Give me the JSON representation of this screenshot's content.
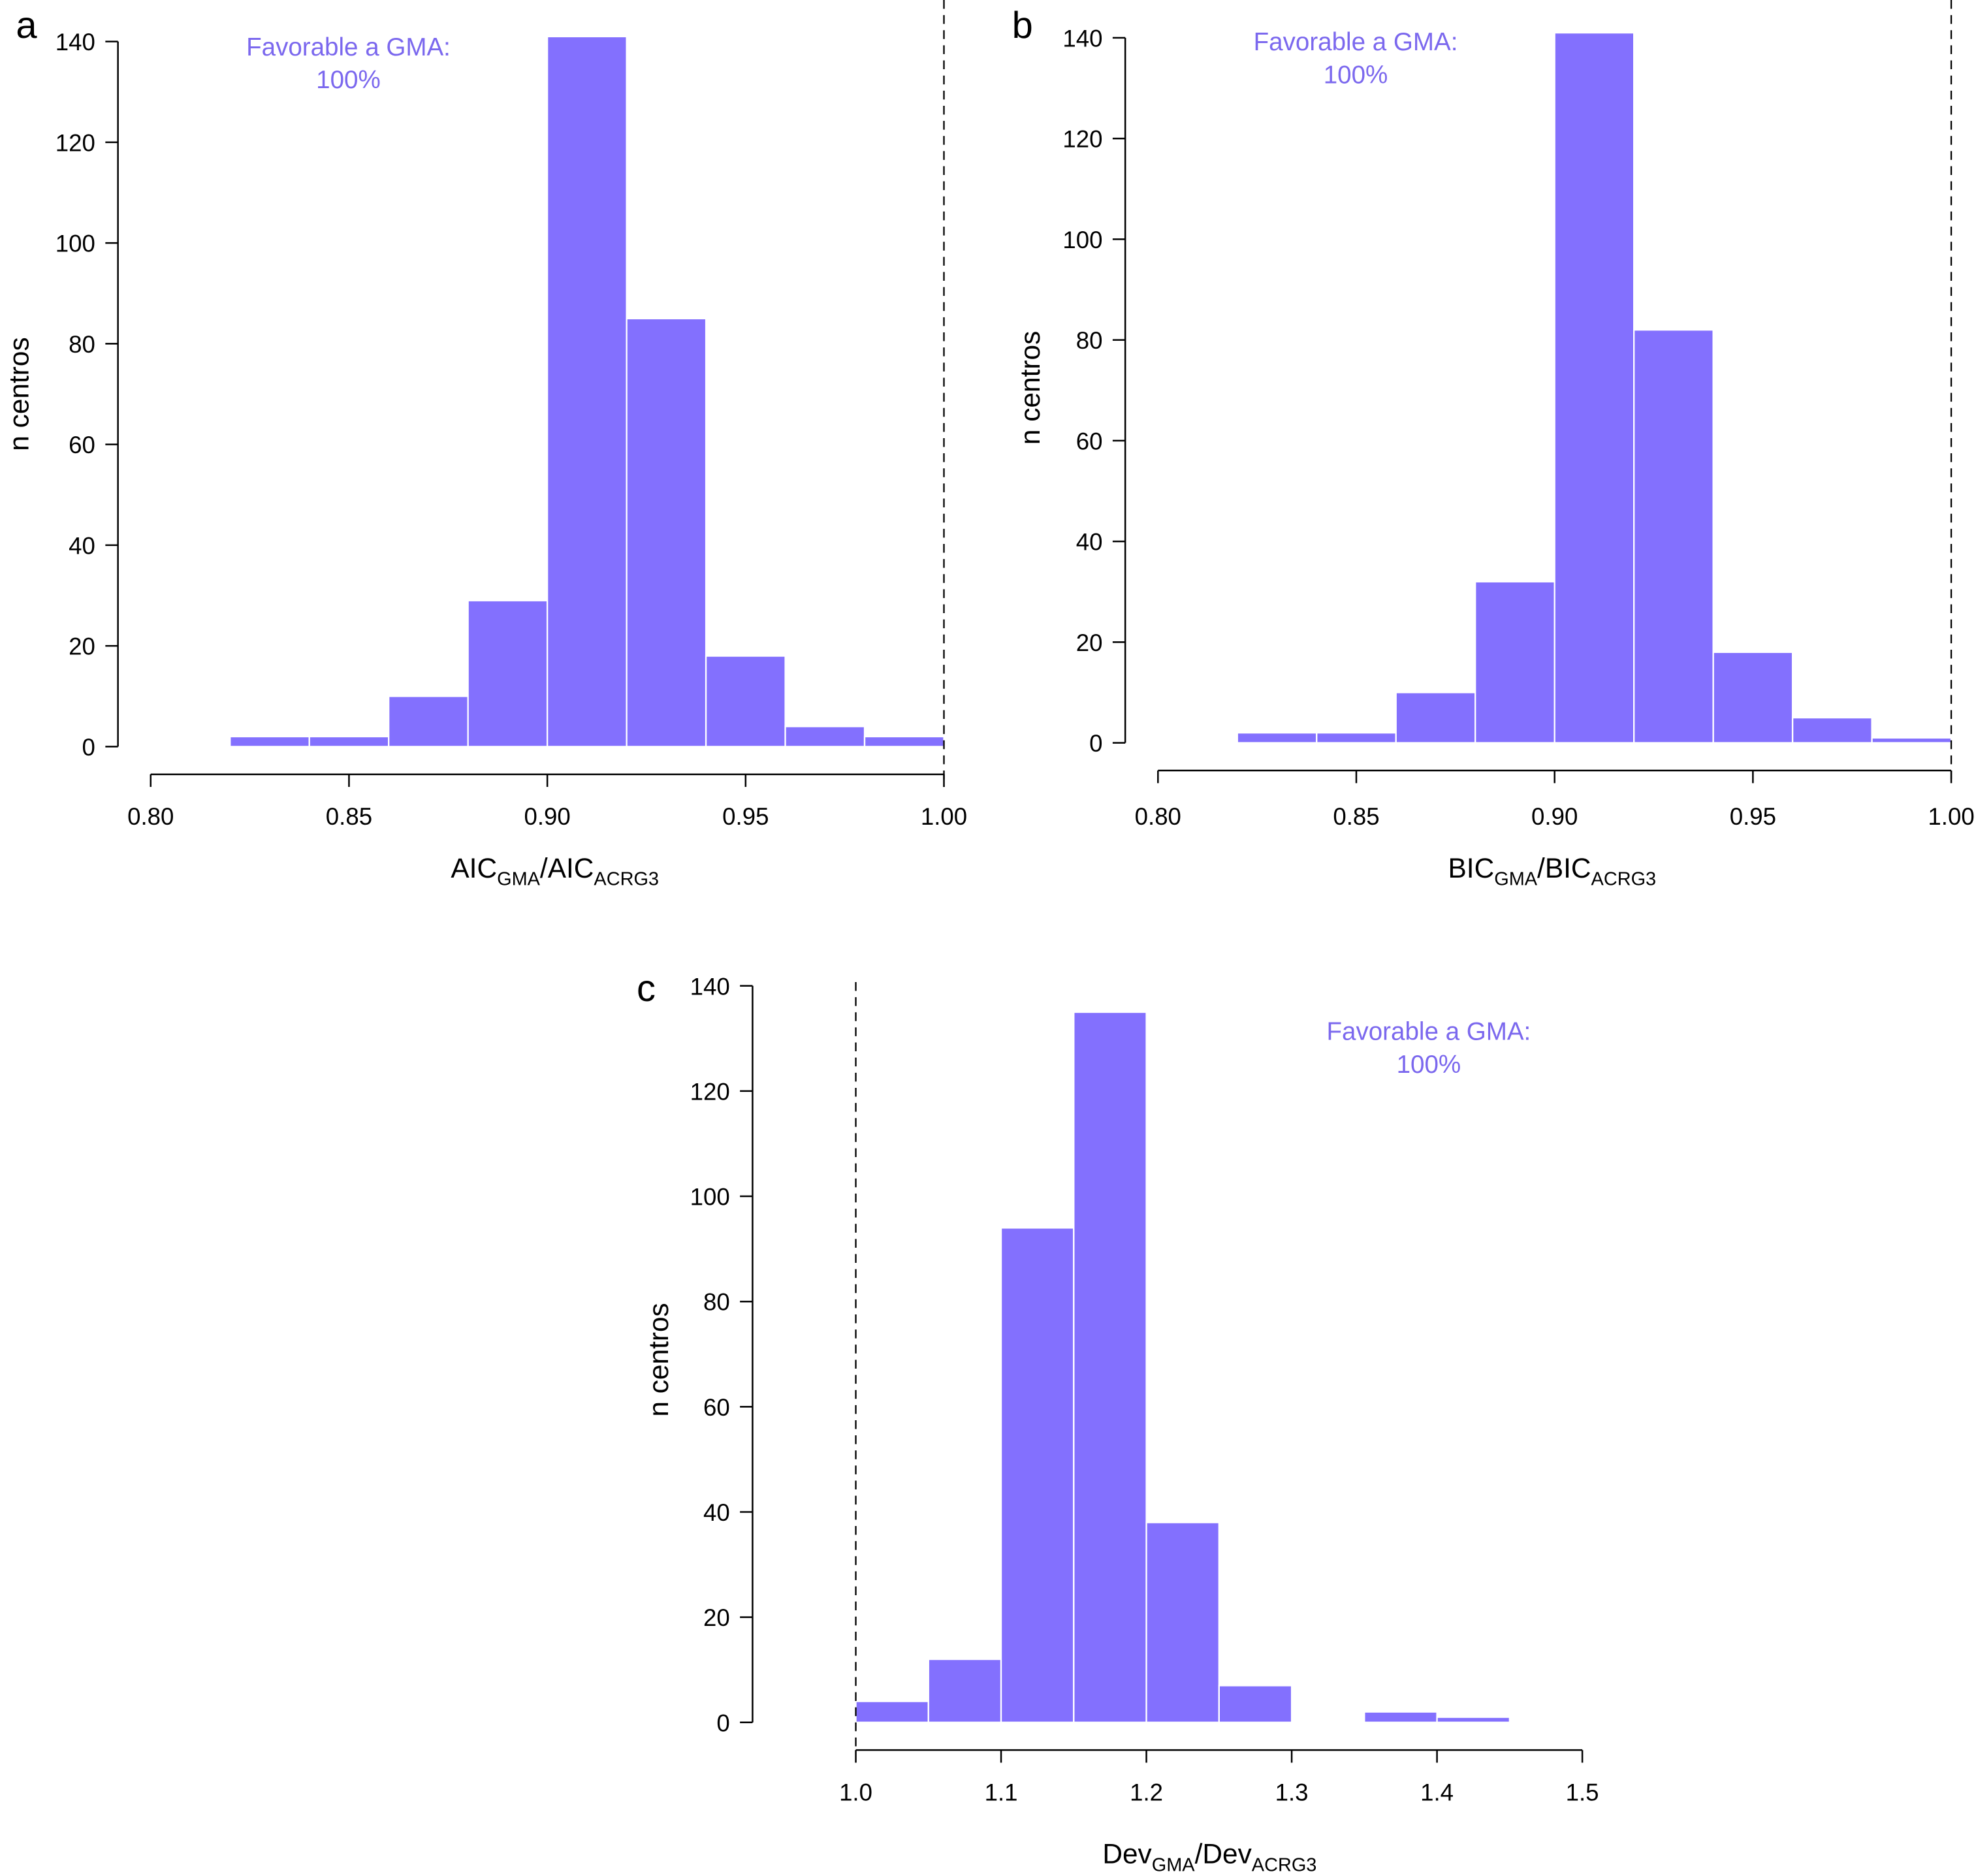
{
  "colors": {
    "bar": "#8370fe",
    "annotation": "#7b68ee",
    "axis": "#000000"
  },
  "chart_data": [
    {
      "panel": "a",
      "type": "bar",
      "bin_edges": [
        0.82,
        0.84,
        0.86,
        0.88,
        0.9,
        0.92,
        0.94,
        0.96,
        0.98,
        1.0
      ],
      "values": [
        2,
        2,
        10,
        29,
        141,
        85,
        18,
        4,
        2
      ],
      "xlim": [
        0.8,
        1.0
      ],
      "ylim": [
        0,
        140
      ],
      "xticks": [
        "0.80",
        "0.85",
        "0.90",
        "0.95",
        "1.00"
      ],
      "yticks": [
        "0",
        "20",
        "40",
        "60",
        "80",
        "100",
        "120",
        "140"
      ],
      "xlabel": {
        "main1": "AIC",
        "sub1": "GMA",
        "main2": "/AIC",
        "sub2": "ACRG3"
      },
      "ylabel": "n centros",
      "reference_line": 1.0,
      "annotation": [
        "Favorable a GMA:",
        "100%"
      ]
    },
    {
      "panel": "b",
      "type": "bar",
      "bin_edges": [
        0.82,
        0.84,
        0.86,
        0.88,
        0.9,
        0.92,
        0.94,
        0.96,
        0.98,
        1.0
      ],
      "values": [
        2,
        2,
        10,
        32,
        141,
        82,
        18,
        5,
        1
      ],
      "xlim": [
        0.8,
        1.0
      ],
      "ylim": [
        0,
        140
      ],
      "xticks": [
        "0.80",
        "0.85",
        "0.90",
        "0.95",
        "1.00"
      ],
      "yticks": [
        "0",
        "20",
        "40",
        "60",
        "80",
        "100",
        "120",
        "140"
      ],
      "xlabel": {
        "main1": "BIC",
        "sub1": "GMA",
        "main2": "/BIC",
        "sub2": "ACRG3"
      },
      "ylabel": "n centros",
      "reference_line": 1.0,
      "annotation": [
        "Favorable a GMA:",
        "100%"
      ]
    },
    {
      "panel": "c",
      "type": "bar",
      "bin_edges": [
        1.0,
        1.05,
        1.1,
        1.15,
        1.2,
        1.25,
        1.3,
        1.35,
        1.4,
        1.45
      ],
      "values": [
        4,
        12,
        94,
        135,
        38,
        7,
        0,
        2,
        1
      ],
      "xlim": [
        1.0,
        1.5
      ],
      "ylim": [
        0,
        140
      ],
      "xticks": [
        "1.0",
        "1.1",
        "1.2",
        "1.3",
        "1.4",
        "1.5"
      ],
      "yticks": [
        "0",
        "20",
        "40",
        "60",
        "80",
        "100",
        "120",
        "140"
      ],
      "xlabel": {
        "main1": "Dev",
        "sub1": "GMA",
        "main2": "/Dev",
        "sub2": "ACRG3"
      },
      "ylabel": "n centros",
      "reference_line": 1.0,
      "annotation": [
        "Favorable a GMA:",
        "100%"
      ]
    }
  ]
}
